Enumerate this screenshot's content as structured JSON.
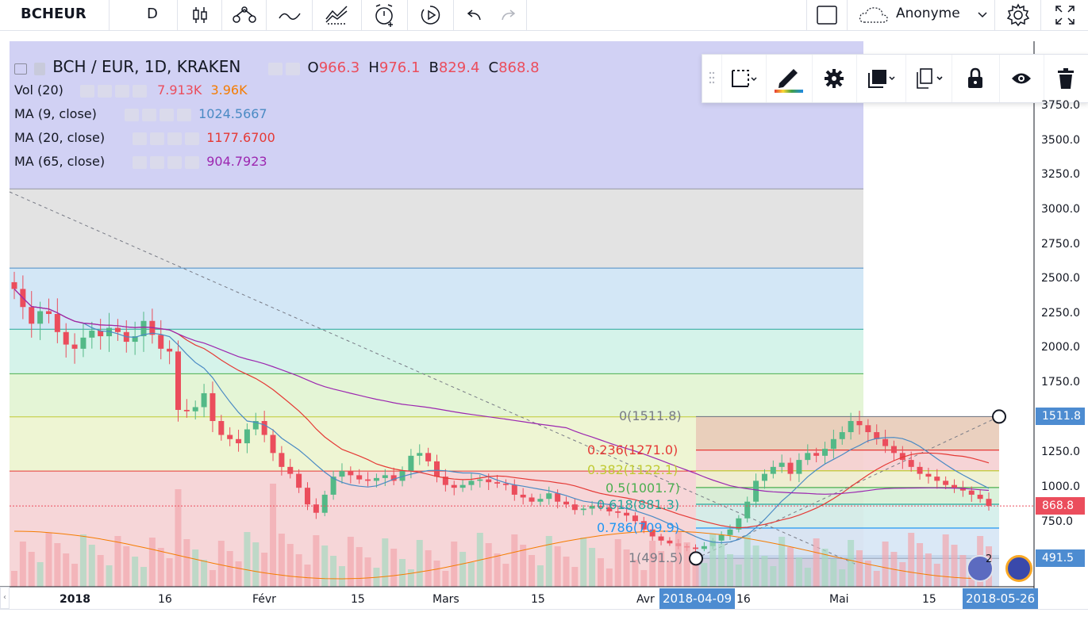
{
  "toolbar": {
    "symbol": "BCHEUR",
    "interval": "D",
    "account": "Anonyme"
  },
  "legend": {
    "main": {
      "title": "BCH / EUR, 1D, KRAKEN",
      "o_label": "O",
      "o": "966.3",
      "h_label": "H",
      "h": "976.1",
      "b_label": "B",
      "b": "829.4",
      "c_label": "C",
      "c": "868.8"
    },
    "vol": {
      "name": "Vol (20)",
      "v1": "7.913K",
      "v2": "3.96K"
    },
    "ma9": {
      "name": "MA (9, close)",
      "value": "1024.5667"
    },
    "ma20": {
      "name": "MA (20, close)",
      "value": "1177.6700"
    },
    "ma65": {
      "name": "MA (65, close)",
      "value": "904.7923"
    }
  },
  "price_axis": {
    "labels": [
      "3750.0",
      "3500.0",
      "3250.0",
      "3000.0",
      "2750.0",
      "2500.0",
      "2250.0",
      "2000.0",
      "1750.0",
      "1250.0",
      "1000.0",
      "750.0"
    ],
    "last_price": "868.8",
    "fib_high": "1511.8",
    "fib_low": "491.5"
  },
  "time_axis": {
    "labels": [
      "2018",
      "16",
      "Févr",
      "15",
      "Mars",
      "15",
      "Avr",
      "16",
      "Mai",
      "15"
    ],
    "sel_start": "2018-04-09",
    "sel_end": "2018-05-26"
  },
  "fib_levels": [
    {
      "text": "0(1511.8)",
      "color": "#787b86"
    },
    {
      "text": "0.236(1271.0)",
      "color": "#e53935"
    },
    {
      "text": "0.382(1122.1)",
      "color": "#c0ca33"
    },
    {
      "text": "0.5(1001.7)",
      "color": "#4caf50"
    },
    {
      "text": "0.618(881.3)",
      "color": "#26a69a"
    },
    {
      "text": "0.786(709.9)",
      "color": "#2196f3"
    },
    {
      "text": "1(491.5)",
      "color": "#787b86"
    }
  ],
  "badges": {
    "count": "2"
  },
  "colors": {
    "up": "#53b987",
    "down": "#eb4d5c",
    "ma9": "#4a8ac4",
    "ma20": "#e53935",
    "ma65": "#9c27b0",
    "vol_ma": "#f57c00",
    "selection": "#4d8cd1"
  },
  "chart_data": {
    "type": "candlestick",
    "symbol": "BCH / EUR",
    "interval": "1D",
    "exchange": "KRAKEN",
    "y_axis_range": [
      550,
      3800
    ],
    "x_range": [
      "2017-12-25",
      "2018-05-26"
    ],
    "series": [
      {
        "name": "MA (9, close)",
        "last": 1024.5667
      },
      {
        "name": "MA (20, close)",
        "last": 1177.67
      },
      {
        "name": "MA (65, close)",
        "last": 904.7923
      },
      {
        "name": "Vol (20)",
        "last": 7913,
        "ma": 3960
      }
    ],
    "last_candle": {
      "open": 966.3,
      "high": 976.1,
      "low": 829.4,
      "close": 868.8
    },
    "closes_approx": [
      2430,
      2300,
      2180,
      2270,
      2250,
      2120,
      2030,
      2000,
      2080,
      2130,
      2090,
      2150,
      2120,
      2050,
      2090,
      2200,
      2100,
      2000,
      1980,
      1560,
      1550,
      1580,
      1680,
      1480,
      1380,
      1350,
      1320,
      1420,
      1480,
      1380,
      1250,
      1150,
      1100,
      1000,
      880,
      820,
      950,
      1080,
      1120,
      1090,
      1060,
      1050,
      1070,
      1090,
      1050,
      1120,
      1230,
      1250,
      1190,
      1080,
      1020,
      1000,
      1020,
      1050,
      1060,
      1040,
      1030,
      1020,
      950,
      930,
      900,
      920,
      960,
      900,
      880,
      840,
      850,
      870,
      860,
      830,
      820,
      800,
      760,
      700,
      650,
      620,
      600,
      580,
      570,
      560,
      580,
      620,
      660,
      700,
      780,
      900,
      1050,
      1100,
      1150,
      1180,
      1100,
      1200,
      1250,
      1230,
      1280,
      1350,
      1400,
      1480,
      1450,
      1400,
      1350,
      1300,
      1250,
      1200,
      1150,
      1100,
      1080,
      1050,
      1020,
      1000,
      980,
      950,
      920,
      868.8
    ]
  }
}
